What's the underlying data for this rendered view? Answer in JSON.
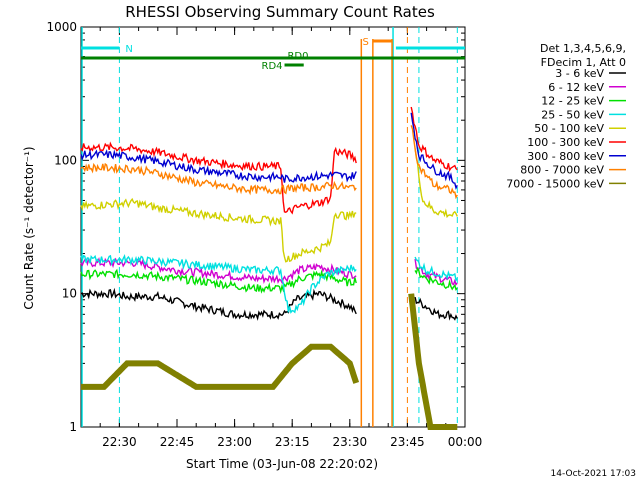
{
  "chart_data": {
    "type": "line",
    "title": "RHESSI Observing Summary Count Rates",
    "xlabel": "Start Time (03-Jun-08 22:20:02)",
    "ylabel": "Count Rate (s⁻¹ detector⁻¹)",
    "y_scale": "log",
    "ylim": [
      1,
      1000
    ],
    "xlim": [
      "22:20:02",
      "00:00"
    ],
    "x_tick_labels": [
      "22:30",
      "22:45",
      "23:00",
      "23:15",
      "23:30",
      "23:45",
      "00:00"
    ],
    "x_tick_minutes": [
      10,
      25,
      40,
      55,
      70,
      85,
      100
    ],
    "y_tick_labels": [
      "1",
      "10",
      "100",
      "1000"
    ],
    "y_tick_values": [
      1,
      10,
      100,
      1000
    ],
    "legend_header": [
      "Det 1,3,4,5,6,9,",
      "FDecim 1, Att 0"
    ],
    "legend_placement": "right",
    "timestamp": "14-Oct-2021 17:03",
    "series": [
      {
        "name": "3 - 6 keV",
        "color": "#000000",
        "points": [
          [
            0,
            10
          ],
          [
            8,
            10
          ],
          [
            12,
            9.5
          ],
          [
            20,
            9.5
          ],
          [
            30,
            8
          ],
          [
            35,
            7.5
          ],
          [
            40,
            7
          ],
          [
            45,
            7
          ],
          [
            50,
            7
          ],
          [
            53,
            7
          ],
          [
            56,
            9
          ],
          [
            62,
            10
          ],
          [
            66,
            9
          ],
          [
            70,
            8
          ],
          [
            72,
            7
          ],
          [
            80,
            null
          ],
          [
            87,
            9
          ],
          [
            90,
            8
          ],
          [
            93,
            7
          ],
          [
            96,
            7
          ],
          [
            98,
            6.5
          ]
        ]
      },
      {
        "name": "6 - 12 keV",
        "color": "#d000d0",
        "points": [
          [
            0,
            17
          ],
          [
            8,
            17
          ],
          [
            14,
            17
          ],
          [
            25,
            15
          ],
          [
            35,
            14
          ],
          [
            45,
            13
          ],
          [
            53,
            13
          ],
          [
            57,
            15
          ],
          [
            62,
            16
          ],
          [
            66,
            15
          ],
          [
            70,
            14
          ],
          [
            72,
            14
          ],
          [
            80,
            null
          ],
          [
            87,
            17
          ],
          [
            90,
            14
          ],
          [
            94,
            13
          ],
          [
            98,
            12
          ]
        ]
      },
      {
        "name": "12 - 25 keV",
        "color": "#00e000",
        "points": [
          [
            0,
            14
          ],
          [
            8,
            14
          ],
          [
            14,
            14
          ],
          [
            25,
            13
          ],
          [
            35,
            12
          ],
          [
            45,
            11
          ],
          [
            53,
            11
          ],
          [
            57,
            13
          ],
          [
            62,
            14
          ],
          [
            66,
            13
          ],
          [
            70,
            12
          ],
          [
            72,
            13
          ],
          [
            80,
            null
          ],
          [
            87,
            15
          ],
          [
            90,
            13
          ],
          [
            94,
            12
          ],
          [
            98,
            11
          ]
        ]
      },
      {
        "name": "25 - 50 keV",
        "color": "#00e0e0",
        "points": [
          [
            0,
            18
          ],
          [
            8,
            18
          ],
          [
            14,
            18
          ],
          [
            25,
            17
          ],
          [
            35,
            16
          ],
          [
            45,
            15
          ],
          [
            52,
            15
          ],
          [
            54,
            7.5
          ],
          [
            57,
            8
          ],
          [
            60,
            11
          ],
          [
            64,
            14
          ],
          [
            68,
            15
          ],
          [
            72,
            16
          ],
          [
            80,
            null
          ],
          [
            87,
            18
          ],
          [
            90,
            15
          ],
          [
            94,
            14
          ],
          [
            98,
            13
          ]
        ]
      },
      {
        "name": "50 - 100 keV",
        "color": "#d0d000",
        "points": [
          [
            0,
            45
          ],
          [
            8,
            47
          ],
          [
            14,
            48
          ],
          [
            20,
            44
          ],
          [
            30,
            40
          ],
          [
            40,
            37
          ],
          [
            45,
            36
          ],
          [
            52,
            35
          ],
          [
            53,
            18
          ],
          [
            57,
            20
          ],
          [
            62,
            22
          ],
          [
            65,
            24
          ],
          [
            66,
            40
          ],
          [
            70,
            38
          ],
          [
            72,
            42
          ],
          [
            80,
            null
          ],
          [
            87,
            120
          ],
          [
            89,
            50
          ],
          [
            92,
            42
          ],
          [
            98,
            38
          ]
        ]
      },
      {
        "name": "100 - 300 keV",
        "color": "#ff0000",
        "points": [
          [
            0,
            125
          ],
          [
            8,
            125
          ],
          [
            14,
            122
          ],
          [
            20,
            115
          ],
          [
            30,
            100
          ],
          [
            40,
            92
          ],
          [
            46,
            90
          ],
          [
            52,
            90
          ],
          [
            53,
            40
          ],
          [
            57,
            45
          ],
          [
            62,
            48
          ],
          [
            65,
            52
          ],
          [
            66,
            118
          ],
          [
            70,
            110
          ],
          [
            72,
            100
          ],
          [
            80,
            null
          ],
          [
            86,
            250
          ],
          [
            88,
            130
          ],
          [
            92,
            100
          ],
          [
            96,
            90
          ],
          [
            98,
            85
          ]
        ]
      },
      {
        "name": "300 - 800 keV",
        "color": "#0000d0",
        "points": [
          [
            0,
            110
          ],
          [
            8,
            110
          ],
          [
            14,
            105
          ],
          [
            20,
            98
          ],
          [
            30,
            85
          ],
          [
            40,
            78
          ],
          [
            46,
            75
          ],
          [
            52,
            75
          ],
          [
            53,
            72
          ],
          [
            58,
            75
          ],
          [
            62,
            76
          ],
          [
            66,
            78
          ],
          [
            70,
            75
          ],
          [
            72,
            80
          ],
          [
            80,
            null
          ],
          [
            86,
            220
          ],
          [
            88,
            110
          ],
          [
            92,
            85
          ],
          [
            96,
            75
          ],
          [
            98,
            65
          ]
        ]
      },
      {
        "name": "800 - 7000 keV",
        "color": "#ff8000",
        "points": [
          [
            0,
            88
          ],
          [
            8,
            88
          ],
          [
            14,
            86
          ],
          [
            20,
            80
          ],
          [
            30,
            68
          ],
          [
            40,
            62
          ],
          [
            46,
            60
          ],
          [
            52,
            60
          ],
          [
            56,
            62
          ],
          [
            62,
            63
          ],
          [
            66,
            65
          ],
          [
            70,
            62
          ],
          [
            72,
            65
          ],
          [
            80,
            null
          ],
          [
            86,
            180
          ],
          [
            88,
            90
          ],
          [
            92,
            65
          ],
          [
            96,
            60
          ],
          [
            98,
            55
          ]
        ]
      },
      {
        "name": "7000 - 15000 keV",
        "color": "#808000",
        "points": [
          [
            0,
            2
          ],
          [
            6,
            2
          ],
          [
            12,
            3
          ],
          [
            20,
            3
          ],
          [
            30,
            2
          ],
          [
            40,
            2
          ],
          [
            50,
            2
          ],
          [
            55,
            3
          ],
          [
            60,
            4
          ],
          [
            65,
            4
          ],
          [
            70,
            3
          ],
          [
            72,
            2
          ],
          [
            80,
            null
          ],
          [
            86,
            10
          ],
          [
            88,
            3
          ],
          [
            91,
            1
          ],
          [
            98,
            1
          ]
        ]
      }
    ],
    "annotations": {
      "attenuator_bars": [
        {
          "label": "N",
          "color": "#00e0e0",
          "start_min": 0,
          "end_min": 10
        },
        {
          "label": "S",
          "color": "#ff8000",
          "start_min": 76,
          "end_min": 81
        },
        {
          "label": "",
          "color": "#00e0e0",
          "start_min": 82,
          "end_min": 100
        }
      ],
      "green_bars": [
        {
          "label": "RD0",
          "start_min": 0,
          "end_min": 100
        },
        {
          "label": "RD4",
          "start_min": 53,
          "end_min": 58
        }
      ],
      "cyan_dashed_lines_min": [
        10,
        88,
        98
      ],
      "cyan_solid_lines_min": [
        0,
        81
      ],
      "orange_solid_lines_min": [
        73,
        76,
        81
      ],
      "orange_dashed_lines_min": [
        85
      ]
    }
  }
}
